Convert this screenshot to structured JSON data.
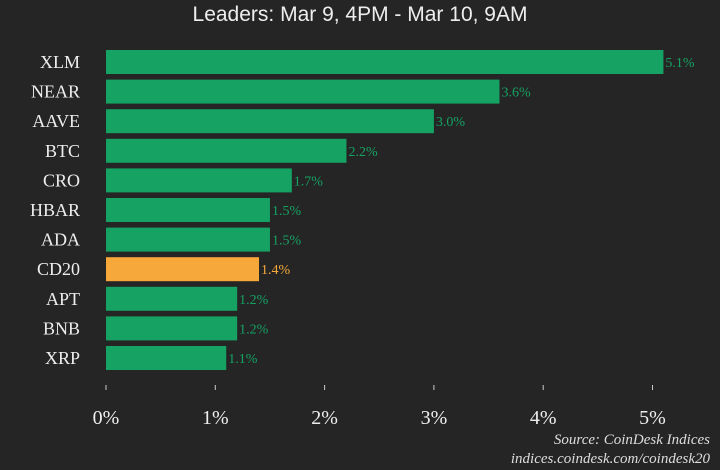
{
  "chart_data": {
    "type": "bar",
    "orientation": "horizontal",
    "title": "Leaders: Mar 9, 4PM - Mar 10, 9AM",
    "categories": [
      "XLM",
      "NEAR",
      "AAVE",
      "BTC",
      "CRO",
      "HBAR",
      "ADA",
      "CD20",
      "APT",
      "BNB",
      "XRP"
    ],
    "values": [
      5.1,
      3.6,
      3.0,
      2.2,
      1.7,
      1.5,
      1.5,
      1.4,
      1.2,
      1.2,
      1.1
    ],
    "data_labels": [
      "5.1%",
      "3.6%",
      "3.0%",
      "2.2%",
      "1.7%",
      "1.5%",
      "1.5%",
      "1.4%",
      "1.2%",
      "1.2%",
      "1.1%"
    ],
    "xticks": [
      "0%",
      "1%",
      "2%",
      "3%",
      "4%",
      "5%"
    ],
    "xlim": [
      0,
      5.1
    ],
    "grid": false,
    "colors": {
      "default": "#15a263",
      "highlight": "#f6a83b",
      "highlight_category": "CD20",
      "background": "#252525"
    }
  },
  "source": {
    "line1": "Source: CoinDesk Indices",
    "line2": "indices.coindesk.com/coindesk20"
  }
}
